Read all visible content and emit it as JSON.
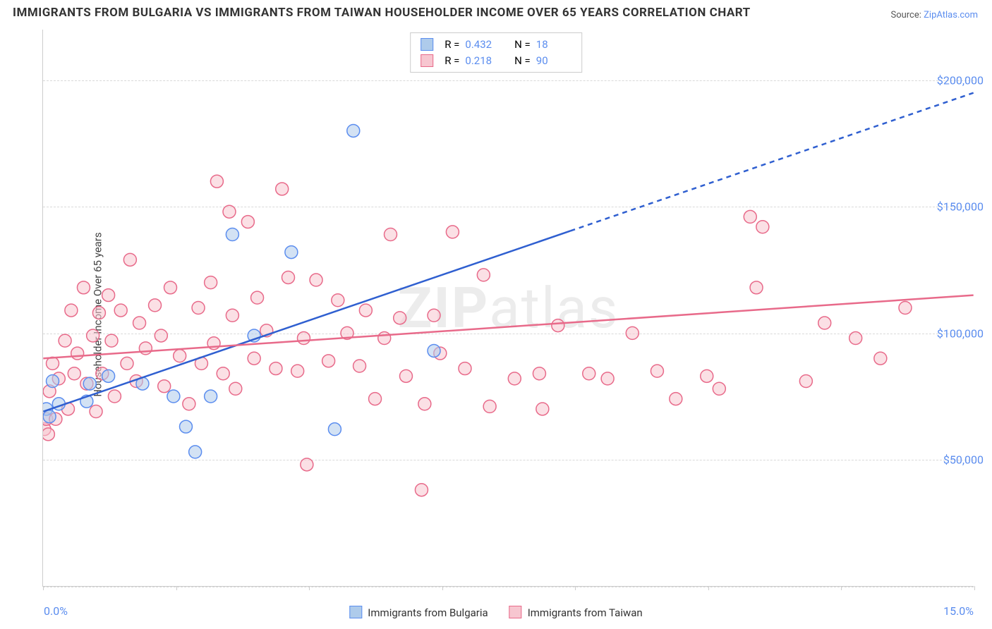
{
  "title": "IMMIGRANTS FROM BULGARIA VS IMMIGRANTS FROM TAIWAN HOUSEHOLDER INCOME OVER 65 YEARS CORRELATION CHART",
  "source_prefix": "Source: ",
  "source_link": "ZipAtlas.com",
  "ylabel": "Householder Income Over 65 years",
  "watermark_bold": "ZIP",
  "watermark_rest": "atlas",
  "chart": {
    "type": "scatter",
    "xlim": [
      0,
      15
    ],
    "ylim": [
      0,
      220000
    ],
    "x_ticks_labels": {
      "min": "0.0%",
      "max": "15.0%"
    },
    "y_gridlines": [
      50000,
      100000,
      150000,
      200000
    ],
    "y_gridline_first": 42,
    "y_tick_labels": [
      "$50,000",
      "$100,000",
      "$150,000",
      "$200,000"
    ],
    "background_color": "#ffffff",
    "grid_color": "#d9d9d9",
    "axis_color": "#cccccc",
    "marker_radius": 9,
    "marker_opacity": 0.55,
    "marker_stroke_width": 1.5,
    "line_width": 2.5,
    "series": [
      {
        "name": "Immigrants from Bulgaria",
        "color_fill": "#aecbeb",
        "color_stroke": "#5b8def",
        "line_color": "#2f5fd0",
        "r_value": "0.432",
        "n_value": "18",
        "trend": {
          "x1": 0,
          "y1": 69000,
          "x2": 15,
          "y2": 195000,
          "dash_from_x": 8.5
        },
        "points": [
          [
            0.05,
            70000
          ],
          [
            0.1,
            67000
          ],
          [
            0.15,
            81000
          ],
          [
            0.25,
            72000
          ],
          [
            0.7,
            73000
          ],
          [
            0.75,
            80000
          ],
          [
            1.05,
            83000
          ],
          [
            1.6,
            80000
          ],
          [
            2.1,
            75000
          ],
          [
            2.3,
            63000
          ],
          [
            2.45,
            53000
          ],
          [
            2.7,
            75000
          ],
          [
            3.05,
            139000
          ],
          [
            3.4,
            99000
          ],
          [
            4.0,
            132000
          ],
          [
            4.7,
            62000
          ],
          [
            5.0,
            180000
          ],
          [
            6.3,
            93000
          ]
        ]
      },
      {
        "name": "Immigrants from Taiwan",
        "color_fill": "#f7c6d0",
        "color_stroke": "#e86a8a",
        "line_color": "#e86a8a",
        "r_value": "0.218",
        "n_value": "90",
        "trend": {
          "x1": 0,
          "y1": 90000,
          "x2": 15,
          "y2": 115000
        },
        "points": [
          [
            0.02,
            62000
          ],
          [
            0.05,
            66000
          ],
          [
            0.08,
            60000
          ],
          [
            0.1,
            77000
          ],
          [
            0.15,
            88000
          ],
          [
            0.2,
            66000
          ],
          [
            0.25,
            82000
          ],
          [
            0.35,
            97000
          ],
          [
            0.4,
            70000
          ],
          [
            0.45,
            109000
          ],
          [
            0.5,
            84000
          ],
          [
            0.55,
            92000
          ],
          [
            0.65,
            118000
          ],
          [
            0.7,
            80000
          ],
          [
            0.8,
            99000
          ],
          [
            0.85,
            69000
          ],
          [
            0.9,
            108000
          ],
          [
            0.95,
            84000
          ],
          [
            1.05,
            115000
          ],
          [
            1.1,
            97000
          ],
          [
            1.15,
            75000
          ],
          [
            1.25,
            109000
          ],
          [
            1.35,
            88000
          ],
          [
            1.4,
            129000
          ],
          [
            1.5,
            81000
          ],
          [
            1.55,
            104000
          ],
          [
            1.65,
            94000
          ],
          [
            1.8,
            111000
          ],
          [
            1.9,
            99000
          ],
          [
            1.95,
            79000
          ],
          [
            2.05,
            118000
          ],
          [
            2.2,
            91000
          ],
          [
            2.35,
            72000
          ],
          [
            2.5,
            110000
          ],
          [
            2.55,
            88000
          ],
          [
            2.7,
            120000
          ],
          [
            2.75,
            96000
          ],
          [
            2.8,
            160000
          ],
          [
            2.9,
            84000
          ],
          [
            3.0,
            148000
          ],
          [
            3.05,
            107000
          ],
          [
            3.1,
            78000
          ],
          [
            3.3,
            144000
          ],
          [
            3.4,
            90000
          ],
          [
            3.45,
            114000
          ],
          [
            3.6,
            101000
          ],
          [
            3.75,
            86000
          ],
          [
            3.85,
            157000
          ],
          [
            3.95,
            122000
          ],
          [
            4.1,
            85000
          ],
          [
            4.2,
            98000
          ],
          [
            4.25,
            48000
          ],
          [
            4.4,
            121000
          ],
          [
            4.6,
            89000
          ],
          [
            4.75,
            113000
          ],
          [
            4.9,
            100000
          ],
          [
            5.1,
            87000
          ],
          [
            5.2,
            109000
          ],
          [
            5.35,
            74000
          ],
          [
            5.5,
            98000
          ],
          [
            5.6,
            139000
          ],
          [
            5.75,
            106000
          ],
          [
            5.85,
            83000
          ],
          [
            6.1,
            38000
          ],
          [
            6.15,
            72000
          ],
          [
            6.3,
            107000
          ],
          [
            6.4,
            92000
          ],
          [
            6.6,
            140000
          ],
          [
            6.8,
            86000
          ],
          [
            7.1,
            123000
          ],
          [
            7.2,
            71000
          ],
          [
            7.6,
            82000
          ],
          [
            8.0,
            84000
          ],
          [
            8.05,
            70000
          ],
          [
            8.3,
            103000
          ],
          [
            8.8,
            84000
          ],
          [
            9.1,
            82000
          ],
          [
            9.5,
            100000
          ],
          [
            9.9,
            85000
          ],
          [
            10.2,
            74000
          ],
          [
            10.7,
            83000
          ],
          [
            10.9,
            78000
          ],
          [
            11.4,
            146000
          ],
          [
            11.5,
            118000
          ],
          [
            11.6,
            142000
          ],
          [
            12.3,
            81000
          ],
          [
            12.6,
            104000
          ],
          [
            13.1,
            98000
          ],
          [
            13.5,
            90000
          ],
          [
            13.9,
            110000
          ]
        ]
      }
    ],
    "bottom_legend_labels": [
      "Immigrants from Bulgaria",
      "Immigrants from Taiwan"
    ],
    "top_legend_cols": [
      "R =",
      "N ="
    ]
  }
}
